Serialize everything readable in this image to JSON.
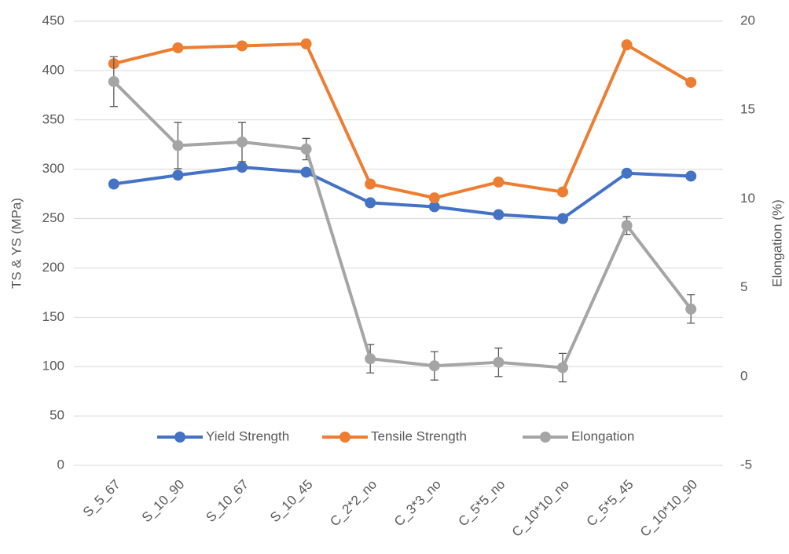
{
  "chart_data": {
    "type": "line",
    "categories": [
      "S_5_67",
      "S_10_90",
      "S_10_67",
      "S_10_45",
      "C_2*2_no",
      "C_3*3_no",
      "C_5*5_no",
      "C_10*10_no",
      "C_5*5_45",
      "C_10*10_90"
    ],
    "y_label": "TS & YS (MPa)",
    "y2_label": "Elongation (%)",
    "ylim": [
      0,
      450
    ],
    "yticks": [
      0,
      50,
      100,
      150,
      200,
      250,
      300,
      350,
      400,
      450
    ],
    "y2lim": [
      -5,
      20
    ],
    "y2ticks": [
      -5,
      0,
      5,
      10,
      15,
      20
    ],
    "grid": true,
    "legend": "bottom",
    "series": [
      {
        "name": "Yield Strength",
        "color": "#4472c4",
        "values": [
          285,
          294,
          302,
          297,
          266,
          262,
          254,
          250,
          296,
          293
        ]
      },
      {
        "name": "Tensile Strength",
        "color": "#ed7d31",
        "values": [
          407,
          423,
          425,
          427,
          285,
          271,
          287,
          277,
          426,
          388
        ]
      },
      {
        "name": "Elongation",
        "color": "#a5a5a5",
        "axis": "y2",
        "values": [
          16.6,
          13.0,
          13.2,
          12.8,
          1.0,
          0.6,
          0.8,
          0.5,
          8.5,
          3.8
        ],
        "errors": [
          1.4,
          1.3,
          1.1,
          0.6,
          0.8,
          0.8,
          0.8,
          0.8,
          0.5,
          0.8
        ]
      }
    ]
  }
}
